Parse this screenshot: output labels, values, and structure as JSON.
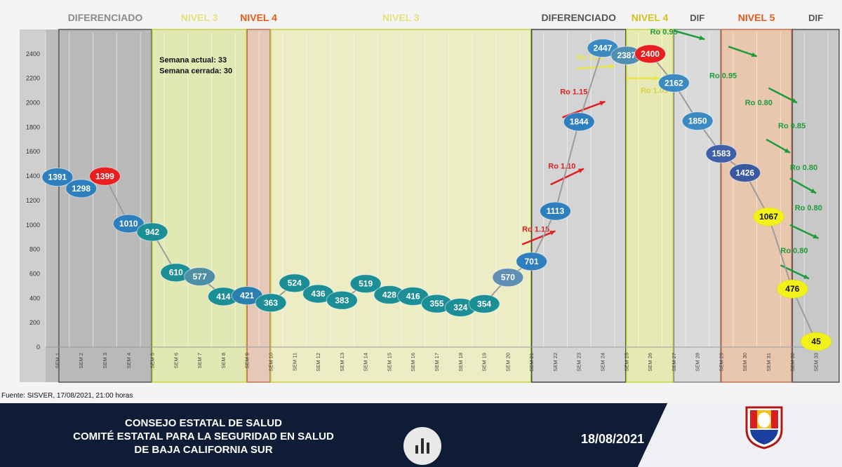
{
  "chart_data": {
    "type": "line",
    "x": [
      "SEM 1",
      "SEM 2",
      "SEM 3",
      "SEM 4",
      "SEM 5",
      "SEM 6",
      "SEM 7",
      "SEM 8",
      "SEM 9",
      "SEM 10",
      "SEM 11",
      "SEM 12",
      "SEM 13",
      "SEM 14",
      "SEM 15",
      "SEM 16",
      "SEM 17",
      "SEM 18",
      "SEM 19",
      "SEM 20",
      "SEM 21",
      "SEM 22",
      "SEM 23",
      "SEM 24",
      "SEM 25",
      "SEM 26",
      "SEM 27",
      "SEM 28",
      "SEM 29",
      "SEM 30",
      "SEM 31",
      "SEM 32",
      "SEM 33"
    ],
    "values": [
      1391,
      1298,
      1399,
      1010,
      942,
      610,
      577,
      414,
      421,
      363,
      524,
      436,
      383,
      519,
      428,
      416,
      355,
      324,
      354,
      570,
      701,
      1113,
      1844,
      2447,
      2387,
      2400,
      2162,
      1850,
      1583,
      1426,
      1067,
      476,
      45
    ],
    "point_colors": [
      "#2e7fbd",
      "#2e7fbd",
      "#e62020",
      "#2e7fbd",
      "#1b8f95",
      "#1b8f95",
      "#4f8fa6",
      "#1b8f95",
      "#2a7fae",
      "#1b8f95",
      "#1b8f95",
      "#1b8f95",
      "#1b8f95",
      "#1b8f95",
      "#1b8f95",
      "#1b8f95",
      "#1b8f95",
      "#1b8f95",
      "#1b8f95",
      "#5f8fb2",
      "#2e7fbd",
      "#2e7fbd",
      "#2e7fbd",
      "#3b8ac2",
      "#4f8fb0",
      "#e62020",
      "#3b8ac2",
      "#3b8ac2",
      "#3f5fa8",
      "#3a5aa0",
      "#f2f21a",
      "#f2f21a",
      "#f2f21a"
    ],
    "y_ticks": [
      "0",
      "200",
      "400",
      "600",
      "800",
      "1000",
      "1200",
      "1400",
      "1600",
      "1800",
      "2000",
      "2200",
      "2400"
    ],
    "ylim": [
      0,
      2600
    ],
    "grid": true,
    "title": "",
    "xlabel": "",
    "ylabel": "",
    "zones": [
      {
        "label": "DIFERENCIADO",
        "start": 1,
        "end": 4,
        "fill": "#b9b9b9",
        "border": "#555555",
        "label_color": "#8a8a8a"
      },
      {
        "label": "NIVEL 3",
        "start": 5,
        "end": 8,
        "fill": "#e2e8b4",
        "border": "#c7d43c",
        "label_color": "#e4e07a"
      },
      {
        "label": "NIVEL 4",
        "start": 9,
        "end": 9,
        "fill": "#e6c8b8",
        "border": "#c07050",
        "label_color": "#e55a1a"
      },
      {
        "label": "NIVEL 3",
        "start": 10,
        "end": 20,
        "fill": "#ecedc4",
        "border": "#c7d43c",
        "label_color": "#e4e07a"
      },
      {
        "label": "DIFERENCIADO",
        "start": 21,
        "end": 24,
        "fill": "#d4d4d4",
        "border": "#444444",
        "label_color": "#555555"
      },
      {
        "label": "NIVEL 4",
        "start": 25,
        "end": 26,
        "fill": "#e6e9b4",
        "border": "#c7d43c",
        "label_color": "#d4c020"
      },
      {
        "label": "DIF",
        "start": 27,
        "end": 28,
        "fill": "#dadada",
        "border": "#888888",
        "label_color": "#555555"
      },
      {
        "label": "NIVEL 5",
        "start": 29,
        "end": 31,
        "fill": "#e9c6ae",
        "border": "#c07050",
        "label_color": "#e55a1a"
      },
      {
        "label": "DIF",
        "start": 32,
        "end": 33,
        "fill": "#c8c8c8",
        "border": "#555555",
        "label_color": "#555555"
      }
    ],
    "annotations": [
      {
        "text": "Semana actual: 33",
        "x": 5.3,
        "y": 2330,
        "color": "#111111",
        "anchor": "start"
      },
      {
        "text": "Semana cerrada: 30",
        "x": 5.3,
        "y": 2240,
        "color": "#111111",
        "anchor": "start"
      },
      {
        "text": "Ro 1.15",
        "x": 20.6,
        "y": 945,
        "color": "#e02020",
        "anchor": "start",
        "arrow": [
          20.6,
          840,
          22.0,
          950
        ],
        "arrow_color": "#e02020"
      },
      {
        "text": "Ro 1.10",
        "x": 21.7,
        "y": 1460,
        "color": "#e02020",
        "anchor": "start",
        "arrow": [
          21.8,
          1330,
          23.2,
          1460
        ],
        "arrow_color": "#e02020"
      },
      {
        "text": "Ro 1.15",
        "x": 22.2,
        "y": 2070,
        "color": "#e02020",
        "anchor": "start",
        "arrow": [
          22.3,
          1880,
          24.1,
          2010
        ],
        "arrow_color": "#e02020"
      },
      {
        "text": "Ro 1.05",
        "x": 22.9,
        "y": 2350,
        "color": "#e8e84a",
        "anchor": "start",
        "arrow": [
          22.9,
          2280,
          24.5,
          2300
        ],
        "arrow_color": "#e8e84a"
      },
      {
        "text": "Ro 1.05",
        "x": 25.6,
        "y": 2080,
        "color": "#d8d040",
        "anchor": "start",
        "arrow": [
          25.0,
          2200,
          26.4,
          2200
        ],
        "arrow_color": "#e8e84a"
      },
      {
        "text": "Ro 0.95",
        "x": 26.0,
        "y": 2560,
        "color": "#1e9c3a",
        "anchor": "start",
        "arrow": [
          27.0,
          2590,
          28.3,
          2520
        ],
        "arrow_color": "#1e9c3a"
      },
      {
        "text": "Ro 0.95",
        "x": 28.5,
        "y": 2200,
        "color": "#1e9c3a",
        "anchor": "start",
        "arrow": [
          29.3,
          2460,
          30.5,
          2380
        ],
        "arrow_color": "#1e9c3a"
      },
      {
        "text": "Ro 0.80",
        "x": 30.0,
        "y": 1980,
        "color": "#1e9c3a",
        "anchor": "start",
        "arrow": [
          31.0,
          2120,
          32.2,
          2000
        ],
        "arrow_color": "#1e9c3a"
      },
      {
        "text": "Ro 0.85",
        "x": 31.4,
        "y": 1790,
        "color": "#1e9c3a",
        "anchor": "start",
        "arrow": [
          30.9,
          1700,
          31.9,
          1590
        ],
        "arrow_color": "#1e9c3a"
      },
      {
        "text": "Ro 0.80",
        "x": 31.9,
        "y": 1450,
        "color": "#1e9c3a",
        "anchor": "start",
        "arrow": [
          31.9,
          1380,
          33.0,
          1260
        ],
        "arrow_color": "#1e9c3a"
      },
      {
        "text": "Ro 0.80",
        "x": 32.1,
        "y": 1120,
        "color": "#1e9c3a",
        "anchor": "start",
        "arrow": [
          31.9,
          1000,
          33.1,
          890
        ],
        "arrow_color": "#1e9c3a"
      },
      {
        "text": "Ro 0.80",
        "x": 31.5,
        "y": 770,
        "color": "#1e9c3a",
        "anchor": "start",
        "arrow": [
          31.5,
          670,
          32.7,
          560
        ],
        "arrow_color": "#1e9c3a"
      }
    ]
  },
  "source": "Fuente: SISVER, 17/08/2021, 21:00 horas",
  "footer": {
    "line1": "CONSEJO ESTATAL DE SALUD",
    "line2": "COMITÉ ESTATAL PARA LA SEGURIDAD EN SALUD",
    "line3": "DE BAJA CALIFORNIA SUR",
    "date": "18/08/2021"
  },
  "icons": {
    "media": "audio-bars-icon",
    "logo": "state-emblem-logo"
  }
}
